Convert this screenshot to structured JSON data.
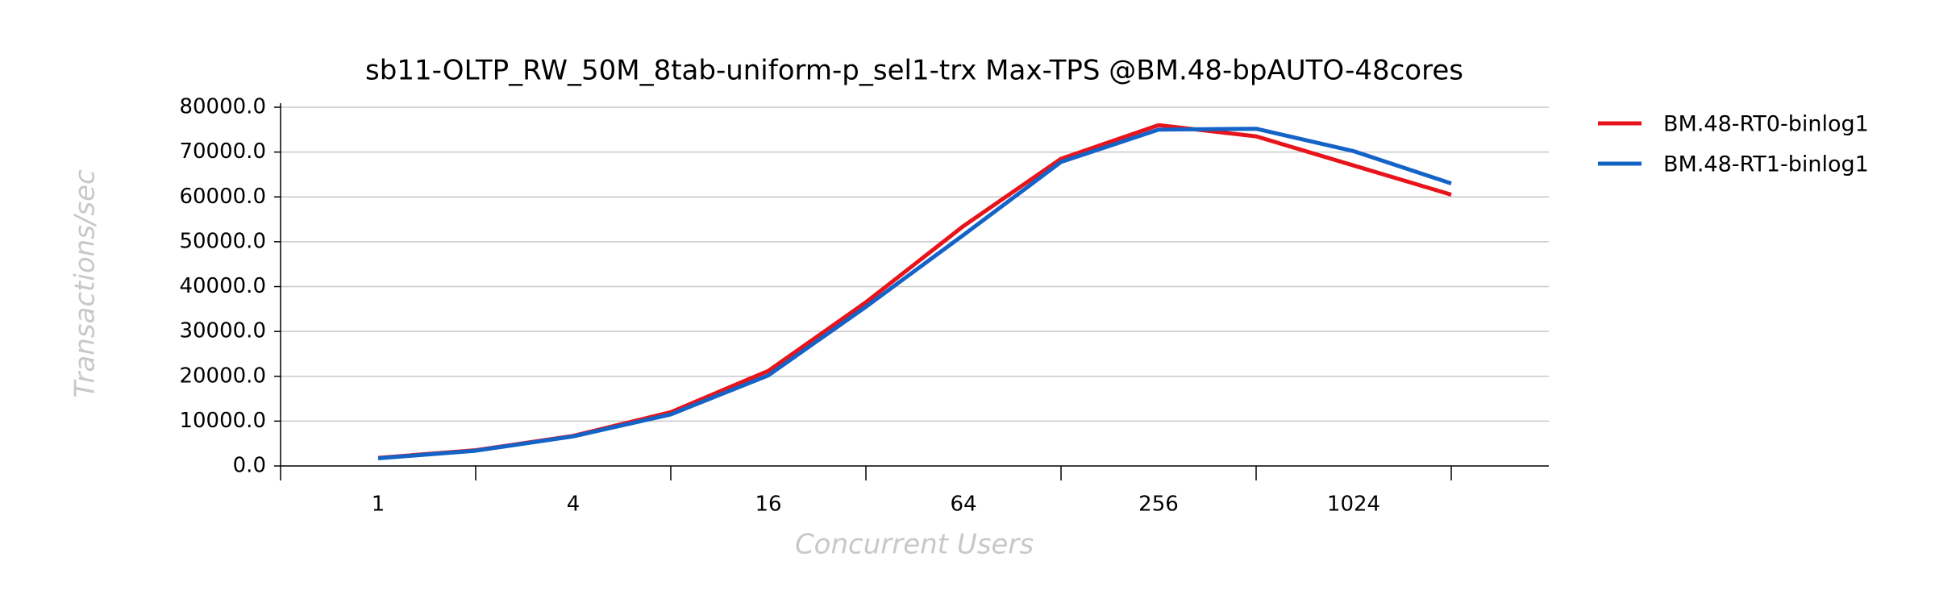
{
  "chart_data": {
    "type": "line",
    "title": "sb11-OLTP_RW_50M_8tab-uniform-p_sel1-trx Max-TPS @BM.48-bpAUTO-48cores",
    "x_label": "Concurrent Users",
    "y_label": "Transactions/sec",
    "categories": [
      "1",
      null,
      "4",
      null,
      "16",
      null,
      "64",
      null,
      "256",
      null,
      "1024",
      null
    ],
    "series": [
      {
        "name": "BM.48-RT0-binlog1",
        "color": "#e8141c",
        "values": [
          1800,
          3500,
          6700,
          12000,
          21200,
          36500,
          53500,
          68500,
          76000,
          73500,
          67000,
          60500
        ]
      },
      {
        "name": "BM.48-RT1-binlog1",
        "color": "#1464c8",
        "values": [
          1700,
          3400,
          6600,
          11500,
          20200,
          35500,
          51500,
          67800,
          75000,
          75200,
          70200,
          63000
        ]
      }
    ],
    "ylim": [
      0,
      80000
    ],
    "yticks": [
      {
        "value": 0,
        "label": "0.0"
      },
      {
        "value": 10000,
        "label": "10000.0"
      },
      {
        "value": 20000,
        "label": "20000.0"
      },
      {
        "value": 30000,
        "label": "30000.0"
      },
      {
        "value": 40000,
        "label": "40000.0"
      },
      {
        "value": 50000,
        "label": "50000.0"
      },
      {
        "value": 60000,
        "label": "60000.0"
      },
      {
        "value": 70000,
        "label": "70000.0"
      },
      {
        "value": 80000,
        "label": "80000.0"
      }
    ],
    "grid": true,
    "legend": "right"
  }
}
